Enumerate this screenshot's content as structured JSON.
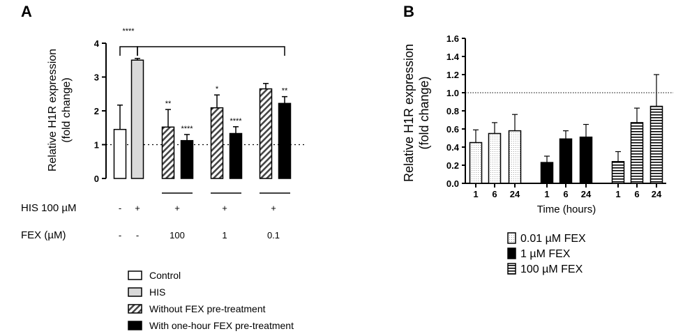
{
  "chart_data": [
    {
      "panel": "A",
      "type": "bar",
      "ylabel_lines": [
        "Relative H1R expression",
        "(fold change)"
      ],
      "ylim": [
        0,
        4
      ],
      "yticks": [
        "0",
        "1",
        "2",
        "3",
        "4"
      ],
      "reference_line": 1,
      "bars": [
        {
          "group": "Control",
          "value": 1.45,
          "error": 0.72,
          "star": ""
        },
        {
          "group": "HIS",
          "value": 3.5,
          "error": 0.05,
          "star": ""
        },
        {
          "group": "Without FEX pre-treatment",
          "value": 1.52,
          "error": 0.52,
          "star": "**"
        },
        {
          "group": "With one-hour FEX pre-treatment",
          "value": 1.12,
          "error": 0.18,
          "star": "****"
        },
        {
          "group": "Without FEX pre-treatment",
          "value": 2.09,
          "error": 0.38,
          "star": "*"
        },
        {
          "group": "With one-hour FEX pre-treatment",
          "value": 1.33,
          "error": 0.2,
          "star": "****"
        },
        {
          "group": "Without FEX pre-treatment",
          "value": 2.65,
          "error": 0.16,
          "star": ""
        },
        {
          "group": "With one-hour FEX pre-treatment",
          "value": 2.22,
          "error": 0.2,
          "star": "**"
        }
      ],
      "brackets": [
        {
          "label": "****"
        },
        {
          "label": ""
        }
      ],
      "conditions": {
        "his_label": "HIS 100 µM",
        "his_values": [
          "-",
          "+",
          "+",
          "+",
          "+"
        ],
        "fex_label": "FEX (µM)",
        "fex_values": [
          "-",
          "-",
          "100",
          "1",
          "0.1"
        ]
      },
      "legend": [
        "Control",
        "HIS",
        "Without FEX pre-treatment",
        "With one-hour FEX pre-treatment"
      ]
    },
    {
      "panel": "B",
      "type": "bar",
      "ylabel_lines": [
        "Relative H1R expression",
        "(fold change)"
      ],
      "xlabel": "Time (hours)",
      "ylim": [
        0,
        1.6
      ],
      "yticks": [
        "0.0",
        "0.2",
        "0.4",
        "0.6",
        "0.8",
        "1.0",
        "1.2",
        "1.4",
        "1.6"
      ],
      "reference_line": 1.0,
      "categories": [
        "1",
        "6",
        "24"
      ],
      "series": [
        {
          "name": "0.01 µM FEX",
          "values": [
            0.45,
            0.55,
            0.58
          ],
          "errors": [
            0.14,
            0.12,
            0.18
          ]
        },
        {
          "name": "1 µM FEX",
          "values": [
            0.23,
            0.49,
            0.51
          ],
          "errors": [
            0.07,
            0.09,
            0.14
          ]
        },
        {
          "name": "100 µM FEX",
          "values": [
            0.24,
            0.67,
            0.85
          ],
          "errors": [
            0.11,
            0.16,
            0.35
          ]
        }
      ]
    }
  ],
  "colors": {
    "control": "#ffffff",
    "his": "#d9d9d9",
    "with_fex": "#000000",
    "stroke": "#000000"
  }
}
